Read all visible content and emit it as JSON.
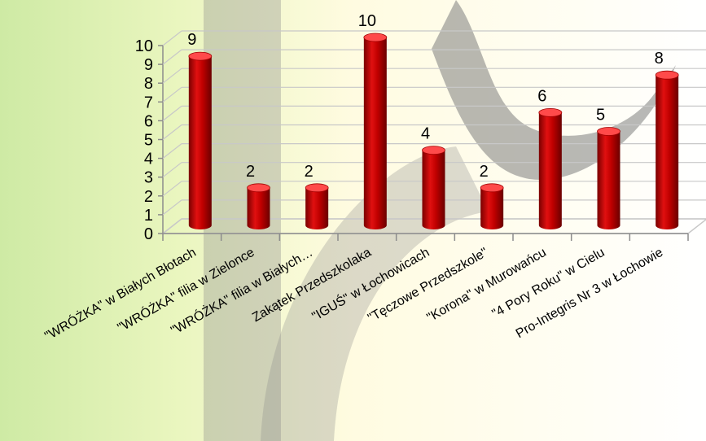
{
  "chart_data": {
    "type": "bar",
    "title": "",
    "xlabel": "",
    "ylabel": "",
    "categories": [
      "\"WRÓŻKA\" w Białych Błotach",
      "\"WRÓŻKA\" filia w Zielonce",
      "\"WRÓŻKA\" filia w Białych…",
      "Zakątek Przedszkolaka",
      "\"IGUŚ\" w Łochowicach",
      "\"Tęczowe Przedszkole\"",
      "\"Korona\" w Murowańcu",
      "\"4 Pory Roku\" w Cielu",
      "Pro-Integris Nr 3 w Łochowie"
    ],
    "values": [
      9,
      2,
      2,
      10,
      4,
      2,
      6,
      5,
      8
    ],
    "ylim": [
      0,
      10
    ],
    "yticks": [
      0,
      1,
      2,
      3,
      4,
      5,
      6,
      7,
      8,
      9,
      10
    ],
    "grid": true,
    "legend": "none",
    "style": "3d-cylinder",
    "colors": {
      "bar": "#c00000",
      "bar_dark": "#7a0000",
      "bar_light": "#ff4a4a",
      "grid": "#c8c8c8",
      "axis": "#8c8c8c",
      "bg_green": "#a6d95a",
      "bg_yellow": "#fff49a",
      "bg_gray": "#8a8a8a"
    }
  }
}
